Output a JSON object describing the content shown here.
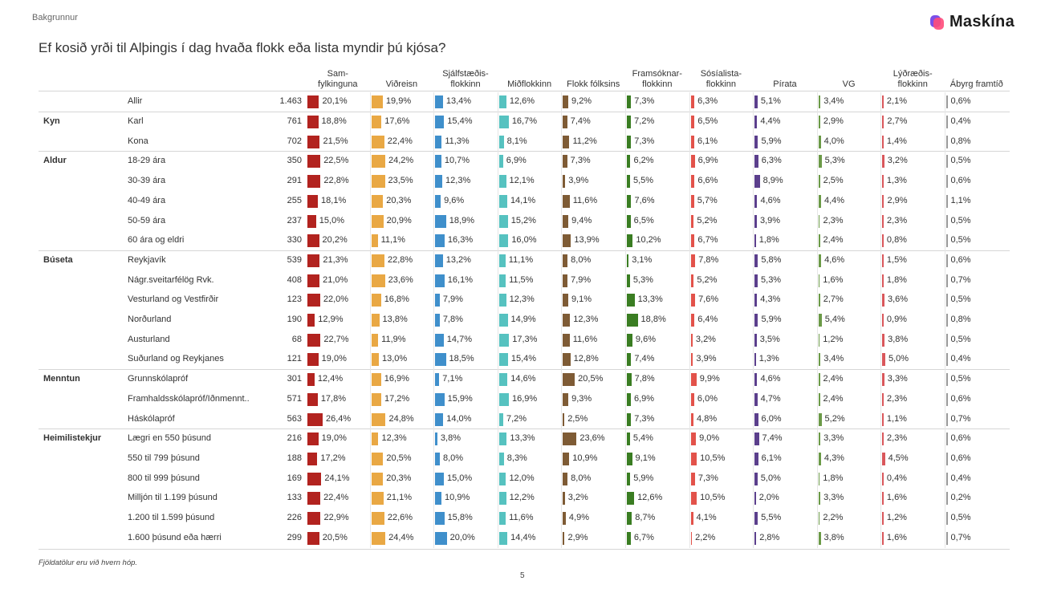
{
  "header": {
    "section": "Bakgrunnur",
    "logo_text": "Maskína"
  },
  "title": "Ef kosið yrði til Alþingis í dag hvaða flokk eða lista myndir þú kjósa?",
  "footnote": "Fjöldatölur eru við hvern hóp.",
  "page_number": "5",
  "chart_data": {
    "type": "table",
    "title": "Ef kosið yrði til Alþingis í dag hvaða flokk eða lista myndir þú kjósa?",
    "parties": [
      {
        "name": "Sam-\nfylkinguna",
        "color": "#b2231f"
      },
      {
        "name": "Viðreisn",
        "color": "#e9a844"
      },
      {
        "name": "Sjálfstæðis-\nflokkinn",
        "color": "#3f8fcb"
      },
      {
        "name": "Miðflokkinn",
        "color": "#56c2c0"
      },
      {
        "name": "Flokk fólksins",
        "color": "#7e5b35"
      },
      {
        "name": "Framsóknar-\nflokkinn",
        "color": "#3a7d22"
      },
      {
        "name": "Sósíalista-\nflokkinn",
        "color": "#e2524a"
      },
      {
        "name": "Pírata",
        "color": "#5b3f8c"
      },
      {
        "name": "VG",
        "color": "#6b9a47"
      },
      {
        "name": "Lýðræðis-\nflokkinn",
        "color": "#d9575b"
      },
      {
        "name": "Ábyrg framtíð",
        "color": "#9a9a9a"
      }
    ],
    "groups": [
      {
        "label": "",
        "rows": [
          {
            "label": "Allir",
            "n": "1.463",
            "values": [
              20.1,
              19.9,
              13.4,
              12.6,
              9.2,
              7.3,
              6.3,
              5.1,
              3.4,
              2.1,
              0.6
            ]
          }
        ]
      },
      {
        "label": "Kyn",
        "rows": [
          {
            "label": "Karl",
            "n": "761",
            "values": [
              18.8,
              17.6,
              15.4,
              16.7,
              7.4,
              7.2,
              6.5,
              4.4,
              2.9,
              2.7,
              0.4
            ]
          },
          {
            "label": "Kona",
            "n": "702",
            "values": [
              21.5,
              22.4,
              11.3,
              8.1,
              11.2,
              7.3,
              6.1,
              5.9,
              4.0,
              1.4,
              0.8
            ]
          }
        ]
      },
      {
        "label": "Aldur",
        "rows": [
          {
            "label": "18-29 ára",
            "n": "350",
            "values": [
              22.5,
              24.2,
              10.7,
              6.9,
              7.3,
              6.2,
              6.9,
              6.3,
              5.3,
              3.2,
              0.5
            ]
          },
          {
            "label": "30-39 ára",
            "n": "291",
            "values": [
              22.8,
              23.5,
              12.3,
              12.1,
              3.9,
              5.5,
              6.6,
              8.9,
              2.5,
              1.3,
              0.6
            ]
          },
          {
            "label": "40-49 ára",
            "n": "255",
            "values": [
              18.1,
              20.3,
              9.6,
              14.1,
              11.6,
              7.6,
              5.7,
              4.6,
              4.4,
              2.9,
              1.1
            ]
          },
          {
            "label": "50-59 ára",
            "n": "237",
            "values": [
              15.0,
              20.9,
              18.9,
              15.2,
              9.4,
              6.5,
              5.2,
              3.9,
              2.3,
              2.3,
              0.5
            ]
          },
          {
            "label": "60 ára og eldri",
            "n": "330",
            "values": [
              20.2,
              11.1,
              16.3,
              16.0,
              13.9,
              10.2,
              6.7,
              1.8,
              2.4,
              0.8,
              0.5
            ]
          }
        ]
      },
      {
        "label": "Búseta",
        "rows": [
          {
            "label": "Reykjavík",
            "n": "539",
            "values": [
              21.3,
              22.8,
              13.2,
              11.1,
              8.0,
              3.1,
              7.8,
              5.8,
              4.6,
              1.5,
              0.6
            ]
          },
          {
            "label": "Nágr.sveitarfélög Rvk.",
            "n": "408",
            "values": [
              21.0,
              23.6,
              16.1,
              11.5,
              7.9,
              5.3,
              5.2,
              5.3,
              1.6,
              1.8,
              0.7
            ]
          },
          {
            "label": "Vesturland og Vestfirðir",
            "n": "123",
            "values": [
              22.0,
              16.8,
              7.9,
              12.3,
              9.1,
              13.3,
              7.6,
              4.3,
              2.7,
              3.6,
              0.5
            ]
          },
          {
            "label": "Norðurland",
            "n": "190",
            "values": [
              12.9,
              13.8,
              7.8,
              14.9,
              12.3,
              18.8,
              6.4,
              5.9,
              5.4,
              0.9,
              0.8
            ]
          },
          {
            "label": "Austurland",
            "n": "68",
            "values": [
              22.7,
              11.9,
              14.7,
              17.3,
              11.6,
              9.6,
              3.2,
              3.5,
              1.2,
              3.8,
              0.5
            ]
          },
          {
            "label": "Suðurland og Reykjanes",
            "n": "121",
            "values": [
              19.0,
              13.0,
              18.5,
              15.4,
              12.8,
              7.4,
              3.9,
              1.3,
              3.4,
              5.0,
              0.4
            ]
          }
        ]
      },
      {
        "label": "Menntun",
        "rows": [
          {
            "label": "Grunnskólapróf",
            "n": "301",
            "values": [
              12.4,
              16.9,
              7.1,
              14.6,
              20.5,
              7.8,
              9.9,
              4.6,
              2.4,
              3.3,
              0.5
            ]
          },
          {
            "label": "Framhaldsskólapróf/Iðnmennt..",
            "n": "571",
            "values": [
              17.8,
              17.2,
              15.9,
              16.9,
              9.3,
              6.9,
              6.0,
              4.7,
              2.4,
              2.3,
              0.6
            ]
          },
          {
            "label": "Háskólapróf",
            "n": "563",
            "values": [
              26.4,
              24.8,
              14.0,
              7.2,
              2.5,
              7.3,
              4.8,
              6.0,
              5.2,
              1.1,
              0.7
            ]
          }
        ]
      },
      {
        "label": "Heimilistekjur",
        "rows": [
          {
            "label": "Lægri en 550 þúsund",
            "n": "216",
            "values": [
              19.0,
              12.3,
              3.8,
              13.3,
              23.6,
              5.4,
              9.0,
              7.4,
              3.3,
              2.3,
              0.6
            ]
          },
          {
            "label": "550 til 799 þúsund",
            "n": "188",
            "values": [
              17.2,
              20.5,
              8.0,
              8.3,
              10.9,
              9.1,
              10.5,
              6.1,
              4.3,
              4.5,
              0.6
            ]
          },
          {
            "label": "800 til 999 þúsund",
            "n": "169",
            "values": [
              24.1,
              20.3,
              15.0,
              12.0,
              8.0,
              5.9,
              7.3,
              5.0,
              1.8,
              0.4,
              0.4
            ]
          },
          {
            "label": "Milljón til 1.199 þúsund",
            "n": "133",
            "values": [
              22.4,
              21.1,
              10.9,
              12.2,
              3.2,
              12.6,
              10.5,
              2.0,
              3.3,
              1.6,
              0.2
            ]
          },
          {
            "label": "1.200 til 1.599 þúsund",
            "n": "226",
            "values": [
              22.9,
              22.6,
              15.8,
              11.6,
              4.9,
              8.7,
              4.1,
              5.5,
              2.2,
              1.2,
              0.5
            ]
          },
          {
            "label": "1.600 þúsund eða hærri",
            "n": "299",
            "values": [
              20.5,
              24.4,
              20.0,
              14.4,
              2.9,
              6.7,
              2.2,
              2.8,
              3.8,
              1.6,
              0.7
            ]
          }
        ]
      }
    ]
  }
}
